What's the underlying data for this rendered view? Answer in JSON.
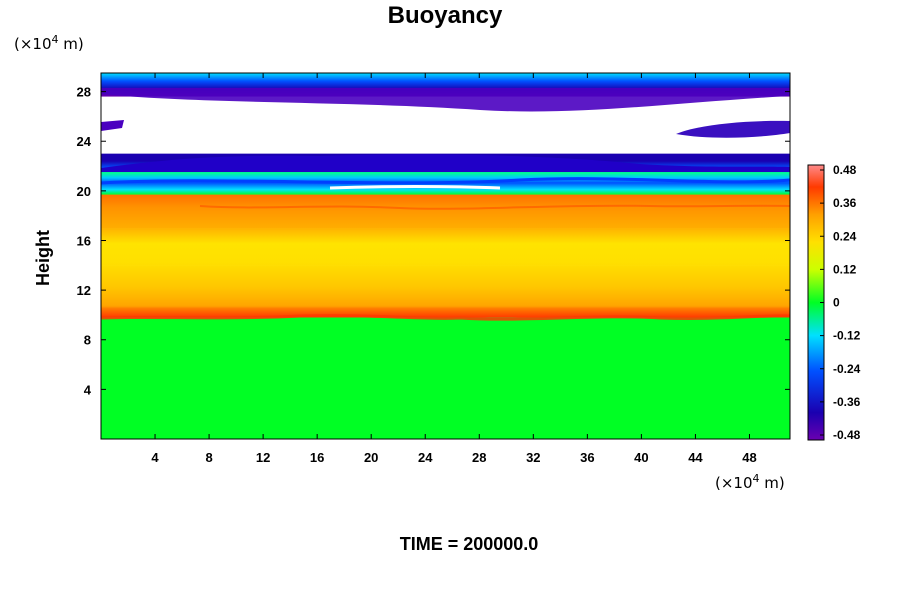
{
  "chart_data": {
    "type": "heatmap",
    "title": "Buoyancy",
    "ylabel": "Height",
    "xlabel": "",
    "x_unit": {
      "prefix": "(×10",
      "exp": "4",
      "suffix": " m)"
    },
    "y_unit": {
      "prefix": "(×10",
      "exp": "4",
      "suffix": " m)"
    },
    "xlim": [
      0,
      51
    ],
    "ylim": [
      0,
      29.5
    ],
    "xticks": [
      4,
      8,
      12,
      16,
      20,
      24,
      28,
      32,
      36,
      40,
      44,
      48
    ],
    "yticks": [
      4,
      8,
      12,
      16,
      20,
      24,
      28
    ],
    "colorbar": {
      "range": [
        -0.48,
        0.48
      ],
      "ticks": [
        "0.48",
        "0.36",
        "0.24",
        "0.12",
        "0",
        "-0.12",
        "-0.24",
        "-0.36",
        "-0.48"
      ]
    },
    "colors": {
      "zero": "#00ff24",
      "positive_low": "#ffe000",
      "positive_mid": "#ffa000",
      "positive_high": "#ff3a00",
      "negative_low": "#00e0ff",
      "negative_mid": "#0050ff",
      "negative_high": "#1a00b0",
      "min": "#6a00b0",
      "max": "#ff8a8a",
      "undefined": "#ffffff"
    },
    "field_bands": [
      {
        "y_from": 0,
        "y_to": 9.8,
        "value": 0.0
      },
      {
        "y_from": 9.8,
        "y_to": 10.6,
        "value": 0.36
      },
      {
        "y_from": 10.6,
        "y_to": 14.0,
        "value": 0.24
      },
      {
        "y_from": 14.0,
        "y_to": 17.0,
        "value": 0.2
      },
      {
        "y_from": 17.0,
        "y_to": 19.7,
        "value": 0.27
      },
      {
        "y_from": 19.7,
        "y_to": 20.2,
        "value": -0.06
      },
      {
        "y_from": 20.2,
        "y_to": 21.8,
        "value": -0.2
      },
      {
        "y_from": 21.8,
        "y_to": 23.0,
        "value": -0.36
      },
      {
        "y_from": 28.3,
        "y_to": 29.5,
        "value": -0.2
      }
    ]
  },
  "footer": {
    "time_label": "TIME = 200000.0"
  }
}
